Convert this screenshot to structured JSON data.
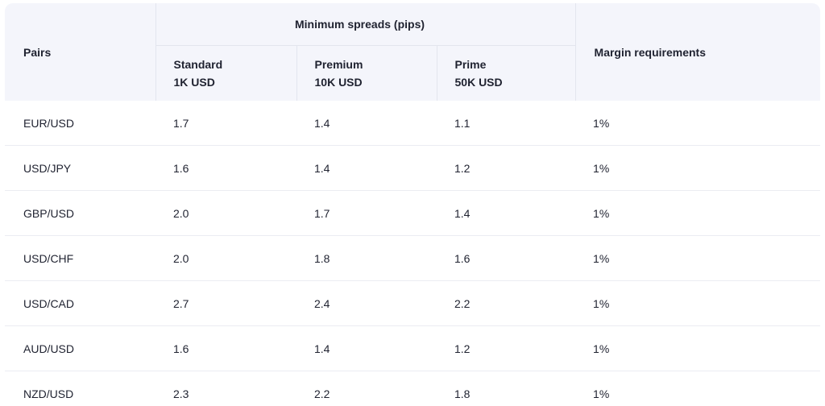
{
  "table": {
    "headers": {
      "pairs": "Pairs",
      "group": "Minimum spreads (pips)",
      "standard": {
        "line1": "Standard",
        "line2": "1K USD"
      },
      "premium": {
        "line1": "Premium",
        "line2": "10K USD"
      },
      "prime": {
        "line1": "Prime",
        "line2": "50K USD"
      },
      "margin": "Margin requirements"
    },
    "rows": [
      {
        "pair": "EUR/USD",
        "standard": "1.7",
        "premium": "1.4",
        "prime": "1.1",
        "margin": "1%"
      },
      {
        "pair": "USD/JPY",
        "standard": "1.6",
        "premium": "1.4",
        "prime": "1.2",
        "margin": "1%"
      },
      {
        "pair": "GBP/USD",
        "standard": "2.0",
        "premium": "1.7",
        "prime": "1.4",
        "margin": "1%"
      },
      {
        "pair": "USD/CHF",
        "standard": "2.0",
        "premium": "1.8",
        "prime": "1.6",
        "margin": "1%"
      },
      {
        "pair": "USD/CAD",
        "standard": "2.7",
        "premium": "2.4",
        "prime": "2.2",
        "margin": "1%"
      },
      {
        "pair": "AUD/USD",
        "standard": "1.6",
        "premium": "1.4",
        "prime": "1.2",
        "margin": "1%"
      },
      {
        "pair": "NZD/USD",
        "standard": "2.3",
        "premium": "2.2",
        "prime": "1.8",
        "margin": "1%"
      }
    ]
  }
}
